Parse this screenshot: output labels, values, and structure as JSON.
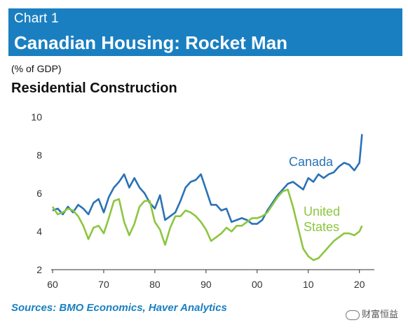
{
  "header": {
    "chart_label": "Chart 1",
    "title": "Canadian Housing: Rocket Man",
    "unit": "(% of GDP)",
    "subtitle": "Residential Construction"
  },
  "source": "Sources: BMO Economics, Haver Analytics",
  "watermark": "财富恒益",
  "chart_data": {
    "type": "line",
    "title": "Residential Construction",
    "ylabel": "(% of GDP)",
    "xlim": [
      1960,
      2021
    ],
    "ylim": [
      2,
      10
    ],
    "yticks": [
      2,
      4,
      6,
      8,
      10
    ],
    "xticks": [
      1960,
      1970,
      1980,
      1990,
      2000,
      2010,
      2020
    ],
    "xtick_labels": [
      "60",
      "70",
      "80",
      "90",
      "00",
      "10",
      "20"
    ],
    "grid": false,
    "series": [
      {
        "name": "Canada",
        "label_lines": [
          "Canada"
        ],
        "color": "#2a72b5",
        "x": [
          1960,
          1961,
          1962,
          1963,
          1964,
          1965,
          1966,
          1967,
          1968,
          1969,
          1970,
          1971,
          1972,
          1973,
          1974,
          1975,
          1976,
          1977,
          1978,
          1979,
          1980,
          1981,
          1982,
          1983,
          1984,
          1985,
          1986,
          1987,
          1988,
          1989,
          1990,
          1991,
          1992,
          1993,
          1994,
          1995,
          1996,
          1997,
          1998,
          1999,
          2000,
          2001,
          2002,
          2003,
          2004,
          2005,
          2006,
          2007,
          2008,
          2009,
          2010,
          2011,
          2012,
          2013,
          2014,
          2015,
          2016,
          2017,
          2018,
          2019,
          2020,
          2020.5
        ],
        "values": [
          5.1,
          5.2,
          4.9,
          5.3,
          5.0,
          5.4,
          5.2,
          4.9,
          5.5,
          5.7,
          5.0,
          5.8,
          6.3,
          6.6,
          7.0,
          6.3,
          6.8,
          6.3,
          6.0,
          5.5,
          5.2,
          5.9,
          4.6,
          4.8,
          5.0,
          5.6,
          6.3,
          6.6,
          6.7,
          7.0,
          6.2,
          5.4,
          5.4,
          5.1,
          5.2,
          4.5,
          4.6,
          4.7,
          4.6,
          4.4,
          4.4,
          4.6,
          5.1,
          5.5,
          5.9,
          6.2,
          6.5,
          6.6,
          6.4,
          6.2,
          6.8,
          6.6,
          7.0,
          6.8,
          7.0,
          7.1,
          7.4,
          7.6,
          7.5,
          7.2,
          7.6,
          9.1
        ]
      },
      {
        "name": "United States",
        "label_lines": [
          "United",
          "States"
        ],
        "color": "#8cc63f",
        "x": [
          1960,
          1961,
          1962,
          1963,
          1964,
          1965,
          1966,
          1967,
          1968,
          1969,
          1970,
          1971,
          1972,
          1973,
          1974,
          1975,
          1976,
          1977,
          1978,
          1979,
          1980,
          1981,
          1982,
          1983,
          1984,
          1985,
          1986,
          1987,
          1988,
          1989,
          1990,
          1991,
          1992,
          1993,
          1994,
          1995,
          1996,
          1997,
          1998,
          1999,
          2000,
          2001,
          2002,
          2003,
          2004,
          2005,
          2006,
          2007,
          2008,
          2009,
          2010,
          2011,
          2012,
          2013,
          2014,
          2015,
          2016,
          2017,
          2018,
          2019,
          2020,
          2020.5
        ],
        "values": [
          5.3,
          4.9,
          5.0,
          5.2,
          5.1,
          4.8,
          4.3,
          3.6,
          4.2,
          4.3,
          3.9,
          4.7,
          5.6,
          5.7,
          4.5,
          3.8,
          4.4,
          5.3,
          5.6,
          5.6,
          4.5,
          4.1,
          3.3,
          4.2,
          4.8,
          4.8,
          5.1,
          5.0,
          4.8,
          4.5,
          4.1,
          3.5,
          3.7,
          3.9,
          4.2,
          4.0,
          4.3,
          4.3,
          4.5,
          4.7,
          4.7,
          4.8,
          5.0,
          5.4,
          5.8,
          6.1,
          6.2,
          5.3,
          4.2,
          3.1,
          2.7,
          2.5,
          2.6,
          2.9,
          3.2,
          3.5,
          3.7,
          3.9,
          3.9,
          3.8,
          4.0,
          4.3
        ]
      }
    ]
  }
}
